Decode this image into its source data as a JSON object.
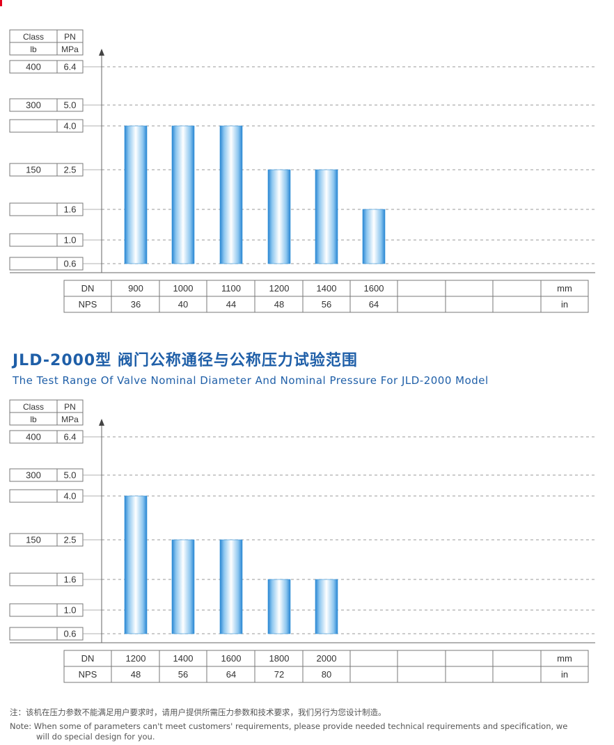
{
  "colors": {
    "accent": "#1f5fa8",
    "marker": "#e3001b",
    "bar_edge": "#2f8fd8",
    "grid": "#999999"
  },
  "chart_data": [
    {
      "type": "bar",
      "title": "",
      "axis_header": {
        "class_label": "Class",
        "class_unit": "lb",
        "pn_label": "PN",
        "pn_unit": "MPa"
      },
      "y_levels": [
        {
          "pn": "6.4",
          "class": "400"
        },
        {
          "pn": "5.0",
          "class": "300"
        },
        {
          "pn": "4.0",
          "class": ""
        },
        {
          "pn": "2.5",
          "class": "150"
        },
        {
          "pn": "1.6",
          "class": ""
        },
        {
          "pn": "1.0",
          "class": ""
        },
        {
          "pn": "0.6",
          "class": ""
        }
      ],
      "row_labels": {
        "dn": "DN",
        "nps": "NPS",
        "dn_unit": "mm",
        "nps_unit": "in"
      },
      "categories": [
        "900",
        "1000",
        "1100",
        "1200",
        "1400",
        "1600"
      ],
      "nps": [
        "36",
        "40",
        "44",
        "48",
        "56",
        "64"
      ],
      "values": [
        4.0,
        4.0,
        4.0,
        2.5,
        2.5,
        1.6
      ],
      "empty_columns": 3,
      "grid": true
    },
    {
      "type": "bar",
      "title": "",
      "axis_header": {
        "class_label": "Class",
        "class_unit": "lb",
        "pn_label": "PN",
        "pn_unit": "MPa"
      },
      "y_levels": [
        {
          "pn": "6.4",
          "class": "400"
        },
        {
          "pn": "5.0",
          "class": "300"
        },
        {
          "pn": "4.0",
          "class": ""
        },
        {
          "pn": "2.5",
          "class": "150"
        },
        {
          "pn": "1.6",
          "class": ""
        },
        {
          "pn": "1.0",
          "class": ""
        },
        {
          "pn": "0.6",
          "class": ""
        }
      ],
      "row_labels": {
        "dn": "DN",
        "nps": "NPS",
        "dn_unit": "mm",
        "nps_unit": "in"
      },
      "categories": [
        "1200",
        "1400",
        "1600",
        "1800",
        "2000"
      ],
      "nps": [
        "48",
        "56",
        "64",
        "72",
        "80"
      ],
      "values": [
        4.0,
        2.5,
        2.5,
        1.6,
        1.6
      ],
      "empty_columns": 4,
      "grid": true
    }
  ],
  "heading": {
    "title_cn": "JLD-2000型 阀门公称通径与公称压力试验范围",
    "title_en": "The Test Range Of Valve Nominal Diameter And Nominal Pressure For JLD-2000 Model"
  },
  "notes": {
    "cn": "注：该机在压力参数不能满足用户要求时，请用户提供所需压力参数和技术要求，我们另行为您设计制造。",
    "en_line1": "Note: When some of parameters can't meet customers' requirements, please provide needed technical requirements and specification, we",
    "en_line2": "will do special design for you."
  }
}
